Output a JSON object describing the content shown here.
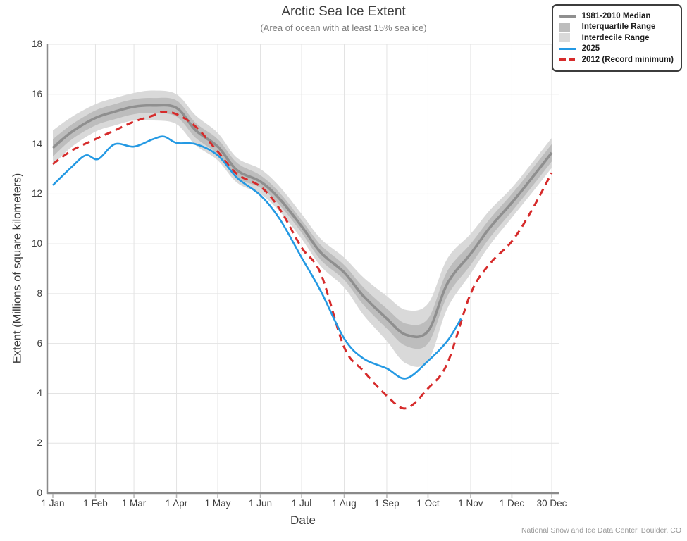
{
  "header": {
    "title": "Arctic Sea Ice Extent",
    "subtitle": "(Area of ocean with at least 15% sea ice)"
  },
  "axes": {
    "x_label": "Date",
    "y_label": "Extent (Millions of square kilometers)",
    "y_ticks": [
      0,
      2,
      4,
      6,
      8,
      10,
      12,
      14,
      16,
      18
    ],
    "x_ticks": [
      {
        "label": "1 Jan",
        "day": 1
      },
      {
        "label": "1 Feb",
        "day": 32
      },
      {
        "label": "1 Mar",
        "day": 60
      },
      {
        "label": "1 Apr",
        "day": 91
      },
      {
        "label": "1 May",
        "day": 121
      },
      {
        "label": "1 Jun",
        "day": 152
      },
      {
        "label": "1 Jul",
        "day": 182
      },
      {
        "label": "1 Aug",
        "day": 213
      },
      {
        "label": "1 Sep",
        "day": 244
      },
      {
        "label": "1 Oct",
        "day": 274
      },
      {
        "label": "1 Nov",
        "day": 305
      },
      {
        "label": "1 Dec",
        "day": 335
      },
      {
        "label": "30 Dec",
        "day": 364
      }
    ]
  },
  "legend": {
    "items": [
      {
        "label": "1981-2010 Median",
        "swatch": "thick-line",
        "color": "#8f8f8f"
      },
      {
        "label": "Interquartile Range",
        "swatch": "filled-box",
        "color": "#bdbdbd"
      },
      {
        "label": "Interdecile Range",
        "swatch": "filled-box",
        "color": "#d9d9d9"
      },
      {
        "label": "2025",
        "swatch": "line",
        "color": "#2499e3"
      },
      {
        "label": "2012 (Record minimum)",
        "swatch": "dashed-line",
        "color": "#d62b2b"
      }
    ]
  },
  "footer": {
    "credit": "National Snow and Ice Data Center, Boulder, CO"
  },
  "colors": {
    "median": "#8f8f8f",
    "interquartile": "#bdbdbd",
    "interdecile": "#d9d9d9",
    "line_2025": "#2499e3",
    "line_2012": "#d62b2b",
    "grid": "#e3e3e3",
    "axis": "#8a8a8a",
    "tick": "#b5b5b5"
  },
  "chart_data": {
    "type": "line",
    "title": "Arctic Sea Ice Extent",
    "subtitle": "(Area of ocean with at least 15% sea ice)",
    "xlabel": "Date",
    "ylabel": "Extent (Millions of square kilometers)",
    "ylim": [
      0,
      18
    ],
    "x_unit": "day_of_year",
    "grid": true,
    "legend_position": "top-right",
    "series": [
      {
        "name": "Interdecile Range",
        "style": "band",
        "color": "#d9d9d9",
        "x": [
          1,
          15,
          32,
          46,
          60,
          74,
          91,
          105,
          121,
          135,
          152,
          166,
          182,
          196,
          213,
          227,
          244,
          258,
          274,
          288,
          305,
          319,
          335,
          349,
          364
        ],
        "y_upper": [
          14.55,
          15.1,
          15.6,
          15.85,
          16.05,
          16.15,
          16.0,
          15.15,
          14.45,
          13.45,
          13.0,
          12.3,
          11.2,
          10.2,
          9.45,
          8.65,
          7.9,
          7.35,
          7.6,
          9.4,
          10.4,
          11.35,
          12.25,
          13.2,
          14.25
        ],
        "y_lower": [
          13.15,
          13.9,
          14.5,
          14.75,
          14.95,
          14.95,
          14.8,
          13.95,
          13.35,
          12.45,
          12.0,
          11.3,
          10.2,
          9.1,
          8.25,
          7.15,
          6.1,
          5.2,
          5.3,
          7.4,
          8.8,
          9.95,
          11.05,
          12.0,
          13.05
        ]
      },
      {
        "name": "Interquartile Range",
        "style": "band",
        "color": "#bdbdbd",
        "x": [
          1,
          15,
          32,
          46,
          60,
          74,
          91,
          105,
          121,
          135,
          152,
          166,
          182,
          196,
          213,
          227,
          244,
          258,
          274,
          288,
          305,
          319,
          335,
          349,
          364
        ],
        "y_upper": [
          14.2,
          14.8,
          15.35,
          15.6,
          15.8,
          15.85,
          15.75,
          14.85,
          14.2,
          13.25,
          12.75,
          12.05,
          10.95,
          9.95,
          9.15,
          8.25,
          7.4,
          6.8,
          7.0,
          8.9,
          10.0,
          11.0,
          12.0,
          12.95,
          14.0
        ],
        "y_lower": [
          13.5,
          14.2,
          14.75,
          15.0,
          15.2,
          15.25,
          15.1,
          14.25,
          13.6,
          12.65,
          12.25,
          11.55,
          10.45,
          9.35,
          8.55,
          7.55,
          6.6,
          5.9,
          6.0,
          7.9,
          9.15,
          10.25,
          11.3,
          12.25,
          13.3
        ]
      },
      {
        "name": "1981-2010 Median",
        "style": "line",
        "color": "#8f8f8f",
        "width": 3.6,
        "x": [
          1,
          15,
          32,
          46,
          60,
          74,
          91,
          105,
          121,
          135,
          152,
          166,
          182,
          196,
          213,
          227,
          244,
          258,
          274,
          288,
          305,
          319,
          335,
          349,
          364
        ],
        "y": [
          13.85,
          14.5,
          15.05,
          15.3,
          15.5,
          15.55,
          15.45,
          14.55,
          13.9,
          12.95,
          12.5,
          11.8,
          10.7,
          9.65,
          8.85,
          7.9,
          7.0,
          6.35,
          6.5,
          8.4,
          9.6,
          10.65,
          11.65,
          12.6,
          13.65
        ]
      },
      {
        "name": "2012 (Record minimum)",
        "style": "dashed-line",
        "color": "#d62b2b",
        "width": 3,
        "x": [
          1,
          15,
          32,
          46,
          60,
          74,
          81,
          91,
          105,
          121,
          135,
          152,
          166,
          182,
          196,
          213,
          227,
          244,
          258,
          274,
          288,
          305,
          319,
          335,
          349,
          364
        ],
        "y": [
          13.2,
          13.75,
          14.2,
          14.55,
          14.9,
          15.15,
          15.3,
          15.2,
          14.7,
          13.7,
          12.8,
          12.3,
          11.4,
          9.85,
          8.8,
          5.85,
          4.9,
          3.9,
          3.4,
          4.2,
          5.2,
          8.0,
          9.2,
          10.1,
          11.3,
          12.85
        ]
      },
      {
        "name": "2025",
        "style": "line",
        "color": "#2499e3",
        "width": 2.6,
        "x": [
          1,
          15,
          25,
          34,
          46,
          60,
          74,
          82,
          91,
          105,
          121,
          135,
          152,
          166,
          182,
          196,
          213,
          227,
          244,
          258,
          274,
          288,
          298
        ],
        "y": [
          12.35,
          13.1,
          13.55,
          13.4,
          14.0,
          13.9,
          14.2,
          14.3,
          14.05,
          14.0,
          13.55,
          12.65,
          11.95,
          11.0,
          9.45,
          8.1,
          6.2,
          5.4,
          5.0,
          4.6,
          5.3,
          6.1,
          7.0
        ]
      }
    ]
  }
}
